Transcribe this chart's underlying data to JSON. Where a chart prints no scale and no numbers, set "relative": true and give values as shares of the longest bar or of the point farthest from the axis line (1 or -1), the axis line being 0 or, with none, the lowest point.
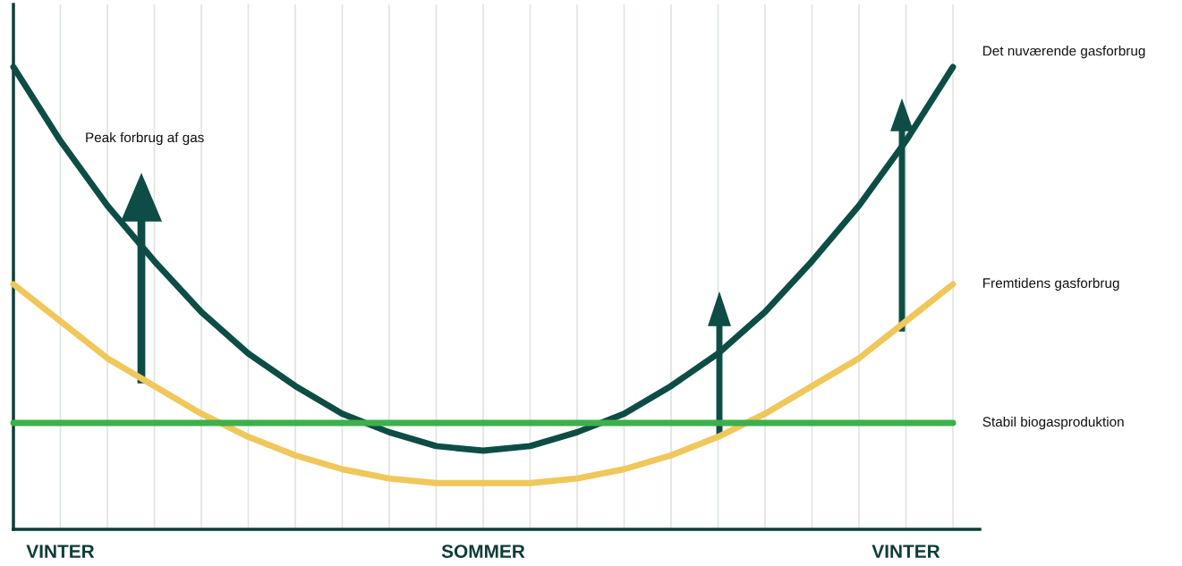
{
  "chart_data": {
    "type": "line",
    "relative": true,
    "categories": [
      null,
      "VINTER",
      null,
      null,
      null,
      null,
      null,
      null,
      null,
      null,
      "SOMMER",
      null,
      null,
      null,
      null,
      null,
      null,
      null,
      null,
      "VINTER",
      null
    ],
    "series": [
      {
        "name": "Det nuværende gasforbrug",
        "color": "#0d4d45",
        "values": [
          1.0,
          0.84,
          0.7,
          0.58,
          0.47,
          0.38,
          0.31,
          0.25,
          0.21,
          0.18,
          0.17,
          0.18,
          0.21,
          0.25,
          0.31,
          0.38,
          0.47,
          0.58,
          0.7,
          0.84,
          1.0
        ]
      },
      {
        "name": "Fremtidens gasforbrug",
        "color": "#f0c75a",
        "values": [
          0.53,
          0.45,
          0.37,
          0.31,
          0.25,
          0.2,
          0.16,
          0.13,
          0.11,
          0.1,
          0.1,
          0.1,
          0.11,
          0.13,
          0.16,
          0.2,
          0.25,
          0.31,
          0.37,
          0.45,
          0.53
        ]
      },
      {
        "name": "Stabil biogasproduktion",
        "color": "#3cb04a",
        "values": [
          0.23,
          0.23,
          0.23,
          0.23,
          0.23,
          0.23,
          0.23,
          0.23,
          0.23,
          0.23,
          0.23,
          0.23,
          0.23,
          0.23,
          0.23,
          0.23,
          0.23,
          0.23,
          0.23,
          0.23,
          0.23
        ]
      }
    ],
    "annotations": [
      "Peak forbrug af gas"
    ],
    "grid": "x",
    "legend": false,
    "marker": "none",
    "line_style": "solid"
  }
}
